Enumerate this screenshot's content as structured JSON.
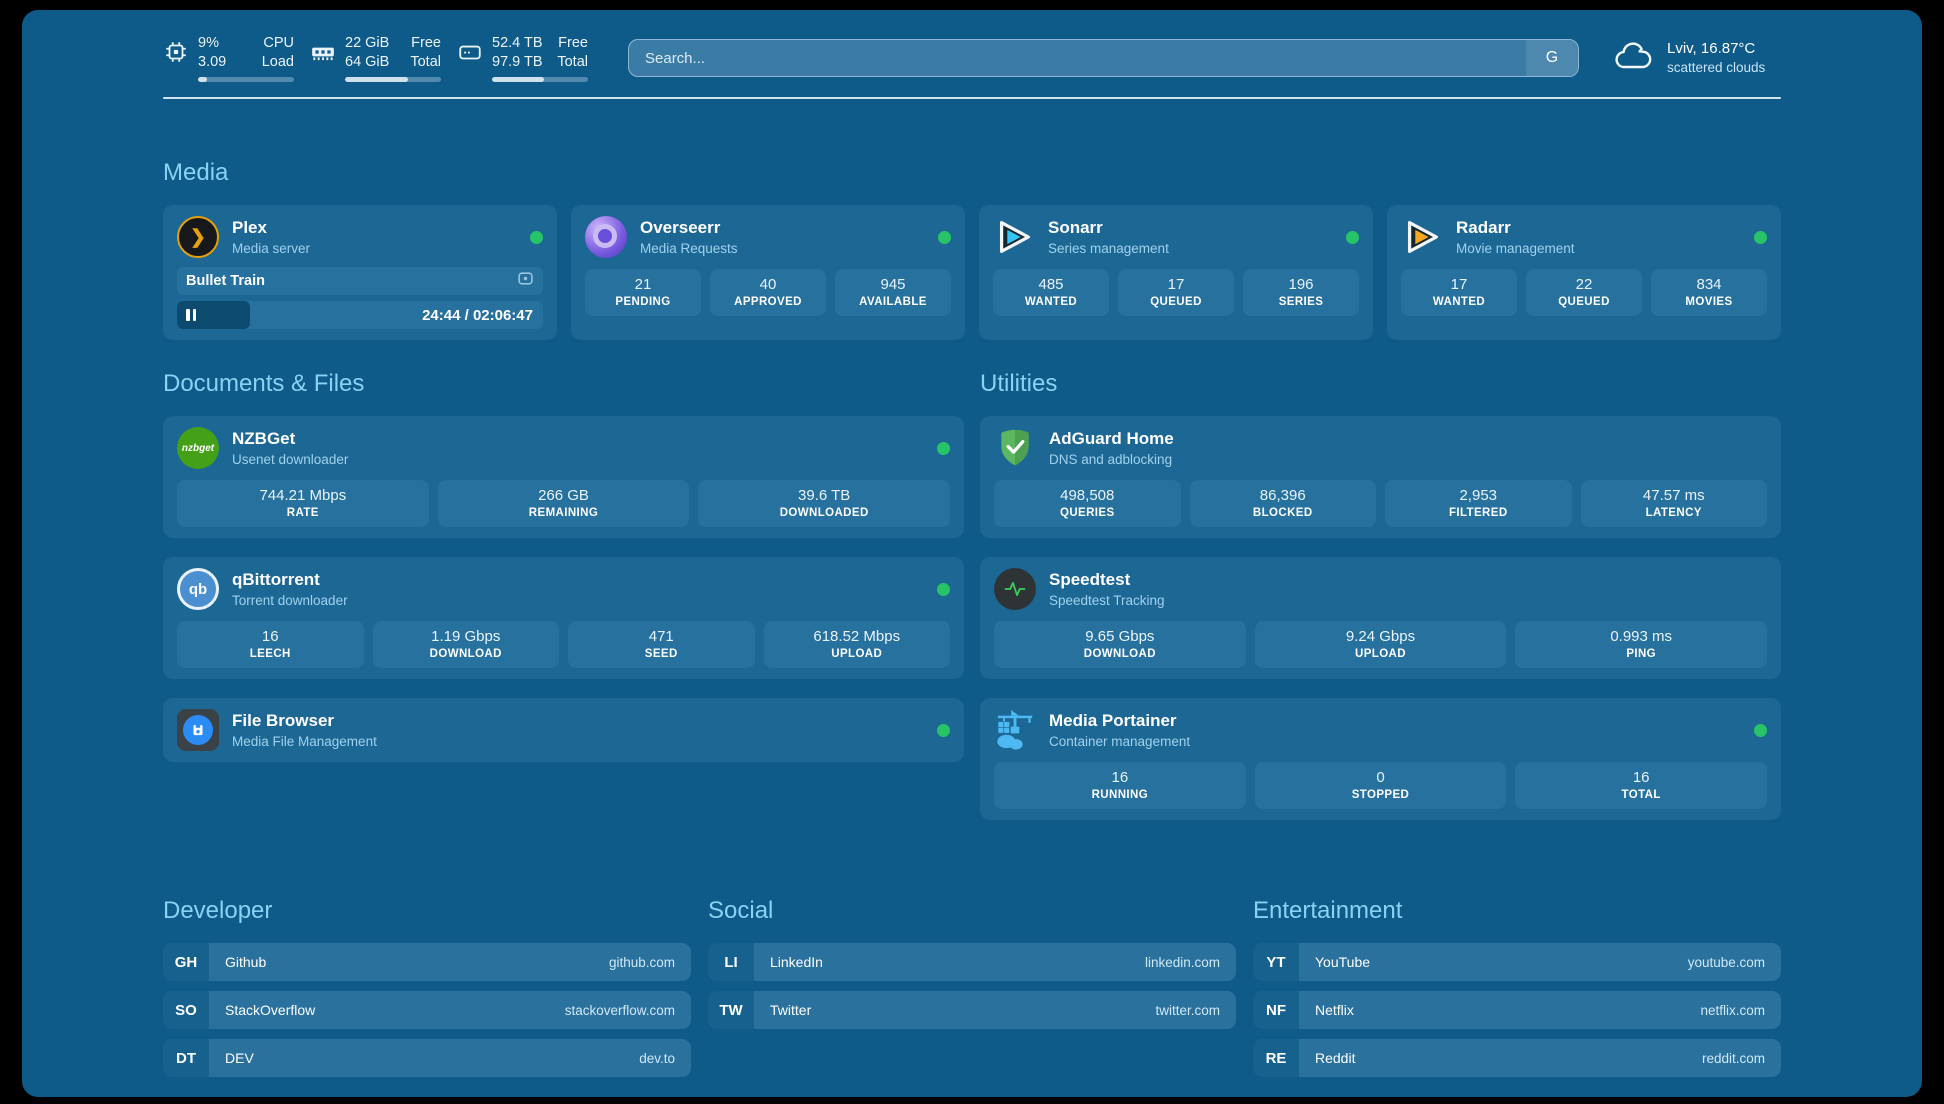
{
  "colors": {
    "frame": "#000000",
    "background": "#0e5a88",
    "card": "#1d6794",
    "stat_box": "#26719d",
    "heading": "#87d3f4",
    "status_online": "#27c467"
  },
  "topbar": {
    "resources": [
      {
        "icon": "cpu-icon",
        "values": [
          "9%",
          "3.09"
        ],
        "labels": [
          "CPU",
          "Load"
        ],
        "progress_pct": 9
      },
      {
        "icon": "ram-icon",
        "values": [
          "22 GiB",
          "64 GiB"
        ],
        "labels": [
          "Free",
          "Total"
        ],
        "progress_pct": 66
      },
      {
        "icon": "disk-icon",
        "values": [
          "52.4 TB",
          "97.9 TB"
        ],
        "labels": [
          "Free",
          "Total"
        ],
        "progress_pct": 54
      }
    ],
    "search": {
      "placeholder": "Search...",
      "provider_button": "G"
    },
    "weather": {
      "icon": "cloud-icon",
      "location": "Lviv, 16.87°C",
      "condition": "scattered clouds"
    }
  },
  "media": {
    "title": "Media",
    "cards": [
      {
        "name": "Plex",
        "desc": "Media server",
        "icon": "plex-icon",
        "online": true,
        "player": {
          "track": "Bullet Train",
          "time": "24:44 / 02:06:47",
          "progress_pct": 20
        }
      },
      {
        "name": "Overseerr",
        "desc": "Media Requests",
        "icon": "overseerr-icon",
        "online": true,
        "stats": [
          {
            "value": "21",
            "label": "PENDING"
          },
          {
            "value": "40",
            "label": "APPROVED"
          },
          {
            "value": "945",
            "label": "AVAILABLE"
          }
        ]
      },
      {
        "name": "Sonarr",
        "desc": "Series management",
        "icon": "sonarr-icon",
        "online": true,
        "stats": [
          {
            "value": "485",
            "label": "WANTED"
          },
          {
            "value": "17",
            "label": "QUEUED"
          },
          {
            "value": "196",
            "label": "SERIES"
          }
        ]
      },
      {
        "name": "Radarr",
        "desc": "Movie management",
        "icon": "radarr-icon",
        "online": true,
        "stats": [
          {
            "value": "17",
            "label": "WANTED"
          },
          {
            "value": "22",
            "label": "QUEUED"
          },
          {
            "value": "834",
            "label": "MOVIES"
          }
        ]
      }
    ]
  },
  "docs": {
    "title": "Documents & Files",
    "cards": [
      {
        "name": "NZBGet",
        "desc": "Usenet downloader",
        "icon": "nzbget-icon",
        "online": true,
        "logo_text": "nzbget",
        "stats": [
          {
            "value": "744.21 Mbps",
            "label": "RATE"
          },
          {
            "value": "266 GB",
            "label": "REMAINING"
          },
          {
            "value": "39.6 TB",
            "label": "DOWNLOADED"
          }
        ]
      },
      {
        "name": "qBittorrent",
        "desc": "Torrent downloader",
        "icon": "qbittorrent-icon",
        "online": true,
        "logo_text": "qb",
        "stats": [
          {
            "value": "16",
            "label": "LEECH"
          },
          {
            "value": "1.19 Gbps",
            "label": "DOWNLOAD"
          },
          {
            "value": "471",
            "label": "SEED"
          },
          {
            "value": "618.52 Mbps",
            "label": "UPLOAD"
          }
        ]
      },
      {
        "name": "File Browser",
        "desc": "Media File Management",
        "icon": "filebrowser-icon",
        "online": true
      }
    ]
  },
  "utilities": {
    "title": "Utilities",
    "cards": [
      {
        "name": "AdGuard Home",
        "desc": "DNS and adblocking",
        "icon": "adguard-icon",
        "online": false,
        "stats": [
          {
            "value": "498,508",
            "label": "QUERIES"
          },
          {
            "value": "86,396",
            "label": "BLOCKED"
          },
          {
            "value": "2,953",
            "label": "FILTERED"
          },
          {
            "value": "47.57 ms",
            "label": "LATENCY"
          }
        ]
      },
      {
        "name": "Speedtest",
        "desc": "Speedtest Tracking",
        "icon": "speedtest-icon",
        "online": false,
        "stats": [
          {
            "value": "9.65 Gbps",
            "label": "DOWNLOAD"
          },
          {
            "value": "9.24 Gbps",
            "label": "UPLOAD"
          },
          {
            "value": "0.993 ms",
            "label": "PING"
          }
        ]
      },
      {
        "name": "Media Portainer",
        "desc": "Container management",
        "icon": "portainer-icon",
        "online": true,
        "stats": [
          {
            "value": "16",
            "label": "RUNNING"
          },
          {
            "value": "0",
            "label": "STOPPED"
          },
          {
            "value": "16",
            "label": "TOTAL"
          }
        ]
      }
    ]
  },
  "bookmarks": [
    {
      "title": "Developer",
      "links": [
        {
          "abbr": "GH",
          "name": "Github",
          "url": "github.com"
        },
        {
          "abbr": "SO",
          "name": "StackOverflow",
          "url": "stackoverflow.com"
        },
        {
          "abbr": "DT",
          "name": "DEV",
          "url": "dev.to"
        }
      ]
    },
    {
      "title": "Social",
      "links": [
        {
          "abbr": "LI",
          "name": "LinkedIn",
          "url": "linkedin.com"
        },
        {
          "abbr": "TW",
          "name": "Twitter",
          "url": "twitter.com"
        }
      ]
    },
    {
      "title": "Entertainment",
      "links": [
        {
          "abbr": "YT",
          "name": "YouTube",
          "url": "youtube.com"
        },
        {
          "abbr": "NF",
          "name": "Netflix",
          "url": "netflix.com"
        },
        {
          "abbr": "RE",
          "name": "Reddit",
          "url": "reddit.com"
        }
      ]
    }
  ]
}
